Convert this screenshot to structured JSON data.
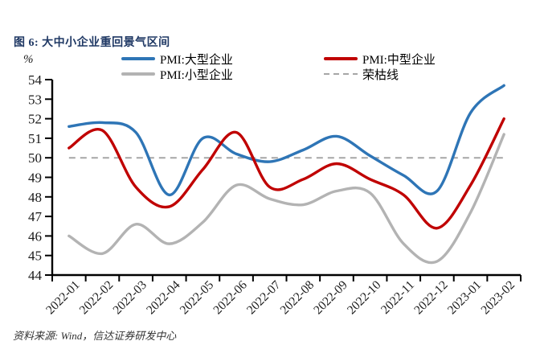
{
  "figure": {
    "title": "图 6: 大中小企业重回景气区间",
    "unit_label": "%",
    "source_note": "资料来源: Wind，信达证券研发中心"
  },
  "chart_data": {
    "type": "line",
    "title": "图 6: 大中小企业重回景气区间",
    "x": [
      "2022-01",
      "2022-02",
      "2022-03",
      "2022-04",
      "2022-05",
      "2022-06",
      "2022-07",
      "2022-08",
      "2022-09",
      "2022-10",
      "2022-11",
      "2022-12",
      "2023-01",
      "2023-02"
    ],
    "series": [
      {
        "name": "PMI:大型企业",
        "color": "#2E75B6",
        "line_style": "solid",
        "values": [
          51.6,
          51.8,
          51.3,
          48.1,
          51.0,
          50.2,
          49.8,
          50.4,
          51.1,
          50.1,
          49.1,
          48.3,
          52.3,
          53.7
        ]
      },
      {
        "name": "PMI:中型企业",
        "color": "#C00000",
        "line_style": "solid",
        "values": [
          50.5,
          51.4,
          48.5,
          47.5,
          49.4,
          51.3,
          48.5,
          48.9,
          49.7,
          48.9,
          48.1,
          46.4,
          48.6,
          52.0
        ]
      },
      {
        "name": "PMI:小型企业",
        "color": "#B3B3B3",
        "line_style": "solid",
        "values": [
          46.0,
          45.1,
          46.6,
          45.6,
          46.7,
          48.6,
          47.9,
          47.6,
          48.3,
          48.2,
          45.6,
          44.7,
          47.2,
          51.2
        ]
      },
      {
        "name": "荣枯线",
        "color": "#A6A6A6",
        "line_style": "dashed",
        "constant": 50
      }
    ],
    "ylabel": "%",
    "ylim": [
      44,
      54
    ],
    "ytick_step": 1,
    "legend_position": "top",
    "grid": false,
    "axis_color": "#000000",
    "tick_label_color": "#1a1a1a"
  }
}
